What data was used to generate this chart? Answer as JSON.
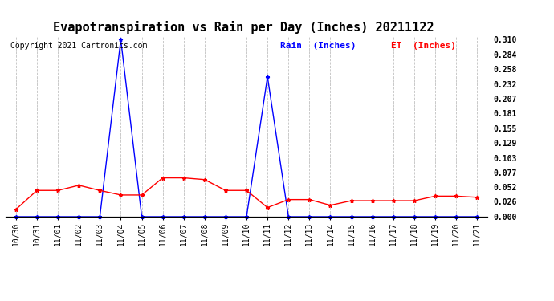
{
  "title": "Evapotranspiration vs Rain per Day (Inches) 20211122",
  "copyright_text": "Copyright 2021 Cartronics.com",
  "legend_rain": "Rain  (Inches)",
  "legend_et": "ET  (Inches)",
  "dates": [
    "10/30",
    "10/31",
    "11/01",
    "11/02",
    "11/03",
    "11/04",
    "11/05",
    "11/06",
    "11/07",
    "11/08",
    "11/09",
    "11/10",
    "11/11",
    "11/12",
    "11/13",
    "11/14",
    "11/15",
    "11/16",
    "11/17",
    "11/18",
    "11/19",
    "11/20",
    "11/21"
  ],
  "rain": [
    0.0,
    0.0,
    0.0,
    0.0,
    0.0,
    0.31,
    0.0,
    0.0,
    0.0,
    0.0,
    0.0,
    0.0,
    0.245,
    0.0,
    0.0,
    0.0,
    0.0,
    0.0,
    0.0,
    0.0,
    0.0,
    0.0,
    0.0
  ],
  "et": [
    0.013,
    0.046,
    0.046,
    0.055,
    0.046,
    0.038,
    0.038,
    0.068,
    0.068,
    0.065,
    0.046,
    0.046,
    0.016,
    0.03,
    0.03,
    0.02,
    0.028,
    0.028,
    0.028,
    0.028,
    0.036,
    0.036,
    0.034
  ],
  "rain_color": "blue",
  "et_color": "red",
  "yticks": [
    0.0,
    0.026,
    0.052,
    0.077,
    0.103,
    0.129,
    0.155,
    0.181,
    0.207,
    0.232,
    0.258,
    0.284,
    0.31
  ],
  "ylim": [
    0.0,
    0.316
  ],
  "background_color": "white",
  "grid_color": "#c0c0c0",
  "title_fontsize": 11,
  "tick_fontsize": 7,
  "legend_fontsize": 8,
  "copyright_fontsize": 7,
  "marker": "*",
  "markersize": 3.5,
  "linewidth": 1.0
}
